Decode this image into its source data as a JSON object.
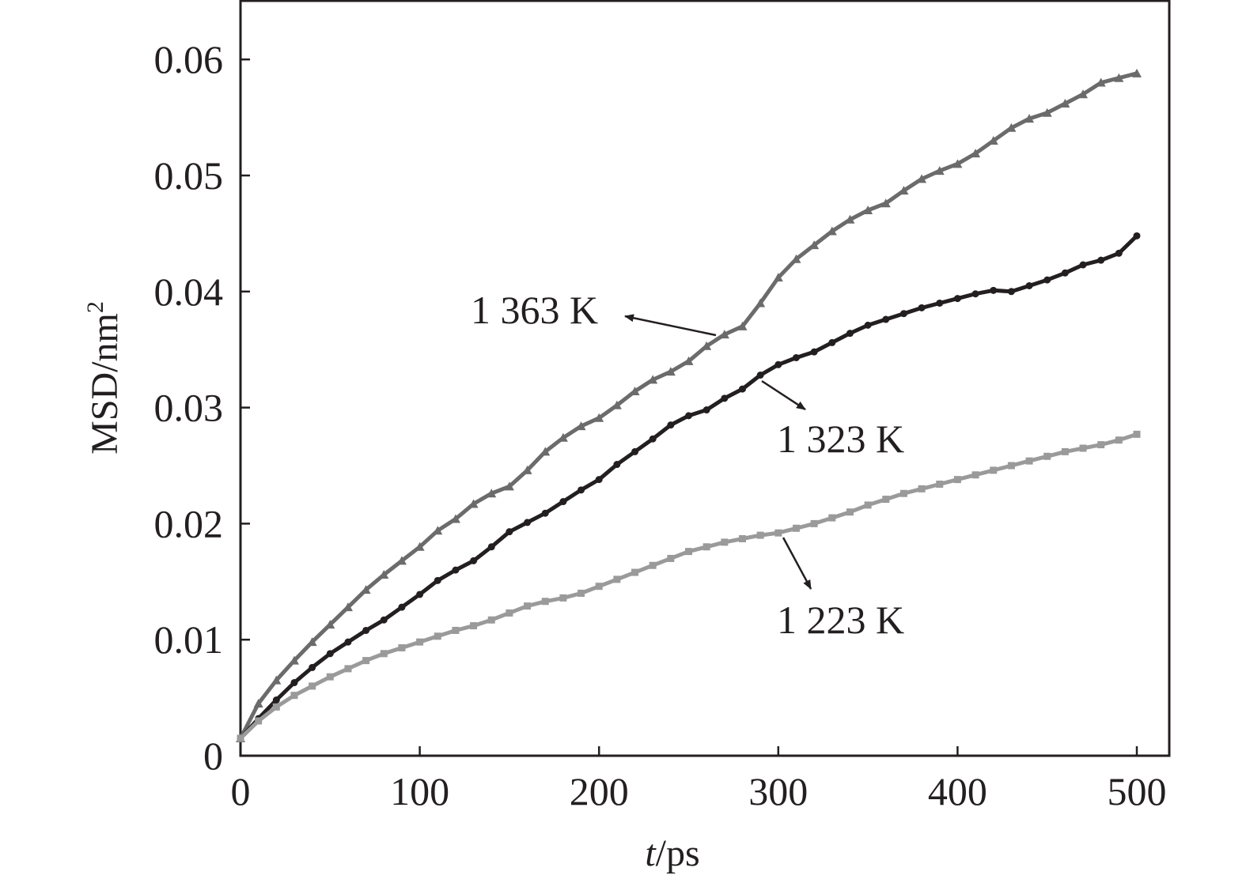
{
  "chart_data": {
    "type": "line",
    "title": "",
    "xlabel": {
      "italic": "t",
      "rest": "/ps"
    },
    "ylabel": {
      "base": "MSD/nm",
      "sup": "2"
    },
    "xlim": [
      0,
      520
    ],
    "ylim": [
      0,
      0.065
    ],
    "x_ticks": [
      0,
      100,
      200,
      300,
      400,
      500
    ],
    "x_tick_labels": [
      "0",
      "100",
      "200",
      "300",
      "400",
      "500"
    ],
    "y_ticks": [
      0,
      0.01,
      0.02,
      0.03,
      0.04,
      0.05,
      0.06
    ],
    "y_tick_labels": [
      "0",
      "0.01",
      "0.02",
      "0.03",
      "0.04",
      "0.05",
      "0.06"
    ],
    "grid": false,
    "legend": "none",
    "series": [
      {
        "name": "1 363 K",
        "color": "#6b6b6b",
        "marker": "triangle",
        "points": [
          [
            0,
            0.0015
          ],
          [
            10,
            0.0045
          ],
          [
            20,
            0.0065
          ],
          [
            30,
            0.0082
          ],
          [
            40,
            0.0098
          ],
          [
            50,
            0.0113
          ],
          [
            60,
            0.0128
          ],
          [
            70,
            0.0143
          ],
          [
            80,
            0.0156
          ],
          [
            90,
            0.0168
          ],
          [
            100,
            0.018
          ],
          [
            110,
            0.0194
          ],
          [
            120,
            0.0204
          ],
          [
            130,
            0.0217
          ],
          [
            140,
            0.0226
          ],
          [
            150,
            0.0232
          ],
          [
            160,
            0.0246
          ],
          [
            170,
            0.0262
          ],
          [
            180,
            0.0274
          ],
          [
            190,
            0.0284
          ],
          [
            200,
            0.0291
          ],
          [
            210,
            0.0302
          ],
          [
            220,
            0.0314
          ],
          [
            230,
            0.0324
          ],
          [
            240,
            0.0331
          ],
          [
            250,
            0.034
          ],
          [
            260,
            0.0353
          ],
          [
            270,
            0.0363
          ],
          [
            280,
            0.037
          ],
          [
            290,
            0.039
          ],
          [
            300,
            0.0412
          ],
          [
            310,
            0.0428
          ],
          [
            320,
            0.044
          ],
          [
            330,
            0.0452
          ],
          [
            340,
            0.0462
          ],
          [
            350,
            0.047
          ],
          [
            360,
            0.0476
          ],
          [
            370,
            0.0487
          ],
          [
            380,
            0.0497
          ],
          [
            390,
            0.0504
          ],
          [
            400,
            0.051
          ],
          [
            410,
            0.0519
          ],
          [
            420,
            0.053
          ],
          [
            430,
            0.0541
          ],
          [
            440,
            0.0549
          ],
          [
            450,
            0.0554
          ],
          [
            460,
            0.0562
          ],
          [
            470,
            0.057
          ],
          [
            480,
            0.058
          ],
          [
            490,
            0.0584
          ],
          [
            500,
            0.0588
          ]
        ]
      },
      {
        "name": "1 323 K",
        "color": "#231f20",
        "marker": "circle",
        "points": [
          [
            0,
            0.0015
          ],
          [
            10,
            0.0032
          ],
          [
            20,
            0.0048
          ],
          [
            30,
            0.0063
          ],
          [
            40,
            0.0076
          ],
          [
            50,
            0.0088
          ],
          [
            60,
            0.0098
          ],
          [
            70,
            0.0108
          ],
          [
            80,
            0.0117
          ],
          [
            90,
            0.0128
          ],
          [
            100,
            0.0139
          ],
          [
            110,
            0.0151
          ],
          [
            120,
            0.016
          ],
          [
            130,
            0.0168
          ],
          [
            140,
            0.018
          ],
          [
            150,
            0.0193
          ],
          [
            160,
            0.0201
          ],
          [
            170,
            0.0209
          ],
          [
            180,
            0.0219
          ],
          [
            190,
            0.0229
          ],
          [
            200,
            0.0238
          ],
          [
            210,
            0.0251
          ],
          [
            220,
            0.0262
          ],
          [
            230,
            0.0273
          ],
          [
            240,
            0.0285
          ],
          [
            250,
            0.0293
          ],
          [
            260,
            0.0298
          ],
          [
            270,
            0.0308
          ],
          [
            280,
            0.0316
          ],
          [
            290,
            0.0328
          ],
          [
            300,
            0.0337
          ],
          [
            310,
            0.0343
          ],
          [
            320,
            0.0348
          ],
          [
            330,
            0.0356
          ],
          [
            340,
            0.0364
          ],
          [
            350,
            0.0371
          ],
          [
            360,
            0.0376
          ],
          [
            370,
            0.0381
          ],
          [
            380,
            0.0386
          ],
          [
            390,
            0.039
          ],
          [
            400,
            0.0394
          ],
          [
            410,
            0.0398
          ],
          [
            420,
            0.0401
          ],
          [
            430,
            0.04
          ],
          [
            440,
            0.0405
          ],
          [
            450,
            0.041
          ],
          [
            460,
            0.0416
          ],
          [
            470,
            0.0423
          ],
          [
            480,
            0.0427
          ],
          [
            490,
            0.0433
          ],
          [
            500,
            0.0448
          ]
        ]
      },
      {
        "name": "1 223 K",
        "color": "#9a9a9a",
        "marker": "square",
        "points": [
          [
            0,
            0.0015
          ],
          [
            10,
            0.003
          ],
          [
            20,
            0.0042
          ],
          [
            30,
            0.0052
          ],
          [
            40,
            0.006
          ],
          [
            50,
            0.0068
          ],
          [
            60,
            0.0075
          ],
          [
            70,
            0.0082
          ],
          [
            80,
            0.0088
          ],
          [
            90,
            0.0093
          ],
          [
            100,
            0.0098
          ],
          [
            110,
            0.0103
          ],
          [
            120,
            0.0108
          ],
          [
            130,
            0.0112
          ],
          [
            140,
            0.0117
          ],
          [
            150,
            0.0123
          ],
          [
            160,
            0.0129
          ],
          [
            170,
            0.0133
          ],
          [
            180,
            0.0136
          ],
          [
            190,
            0.014
          ],
          [
            200,
            0.0146
          ],
          [
            210,
            0.0152
          ],
          [
            220,
            0.0158
          ],
          [
            230,
            0.0164
          ],
          [
            240,
            0.017
          ],
          [
            250,
            0.0176
          ],
          [
            260,
            0.018
          ],
          [
            270,
            0.0184
          ],
          [
            280,
            0.0187
          ],
          [
            290,
            0.019
          ],
          [
            300,
            0.0192
          ],
          [
            310,
            0.0196
          ],
          [
            320,
            0.02
          ],
          [
            330,
            0.0205
          ],
          [
            340,
            0.021
          ],
          [
            350,
            0.0216
          ],
          [
            360,
            0.0221
          ],
          [
            370,
            0.0226
          ],
          [
            380,
            0.023
          ],
          [
            390,
            0.0234
          ],
          [
            400,
            0.0238
          ],
          [
            410,
            0.0242
          ],
          [
            420,
            0.0246
          ],
          [
            430,
            0.025
          ],
          [
            440,
            0.0254
          ],
          [
            450,
            0.0258
          ],
          [
            460,
            0.0262
          ],
          [
            470,
            0.0265
          ],
          [
            480,
            0.0268
          ],
          [
            490,
            0.0272
          ],
          [
            500,
            0.0277
          ]
        ]
      }
    ],
    "annotations": [
      {
        "text": "1 363 K",
        "series": "1 363 K",
        "points_to": [
          265,
          0.0362
        ]
      },
      {
        "text": "1 323 K",
        "series": "1 323 K",
        "points_to": [
          290,
          0.0332
        ]
      },
      {
        "text": "1 223 K",
        "series": "1 223 K",
        "points_to": [
          303,
          0.0193
        ]
      }
    ]
  }
}
